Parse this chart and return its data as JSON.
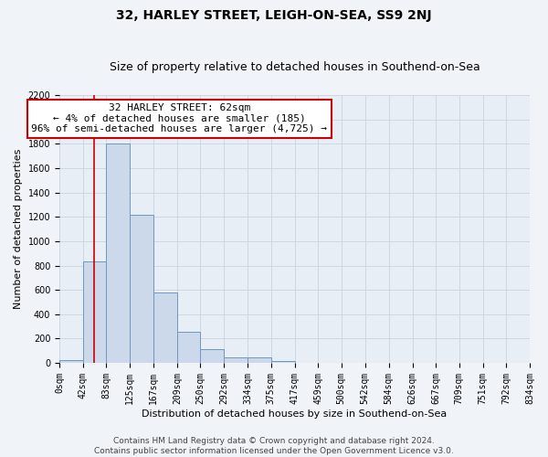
{
  "title": "32, HARLEY STREET, LEIGH-ON-SEA, SS9 2NJ",
  "subtitle": "Size of property relative to detached houses in Southend-on-Sea",
  "xlabel": "Distribution of detached houses by size in Southend-on-Sea",
  "ylabel": "Number of detached properties",
  "bin_edges": [
    0,
    42,
    83,
    125,
    167,
    209,
    250,
    292,
    334,
    375,
    417,
    459,
    500,
    542,
    584,
    626,
    667,
    709,
    751,
    792,
    834
  ],
  "bin_labels": [
    "0sqm",
    "42sqm",
    "83sqm",
    "125sqm",
    "167sqm",
    "209sqm",
    "250sqm",
    "292sqm",
    "334sqm",
    "375sqm",
    "417sqm",
    "459sqm",
    "500sqm",
    "542sqm",
    "584sqm",
    "626sqm",
    "667sqm",
    "709sqm",
    "751sqm",
    "792sqm",
    "834sqm"
  ],
  "bar_heights": [
    25,
    835,
    1800,
    1215,
    580,
    255,
    115,
    42,
    42,
    18,
    0,
    0,
    0,
    0,
    0,
    0,
    0,
    0,
    0,
    0
  ],
  "bar_color": "#ccd9ea",
  "bar_edge_color": "#7096be",
  "property_line_x": 62,
  "property_line_color": "#cc0000",
  "ylim": [
    0,
    2200
  ],
  "yticks": [
    0,
    200,
    400,
    600,
    800,
    1000,
    1200,
    1400,
    1600,
    1800,
    2000,
    2200
  ],
  "annotation_title": "32 HARLEY STREET: 62sqm",
  "annotation_line1": "← 4% of detached houses are smaller (185)",
  "annotation_line2": "96% of semi-detached houses are larger (4,725) →",
  "annotation_box_facecolor": "#ffffff",
  "annotation_box_edgecolor": "#cc0000",
  "footer_line1": "Contains HM Land Registry data © Crown copyright and database right 2024.",
  "footer_line2": "Contains public sector information licensed under the Open Government Licence v3.0.",
  "bg_color": "#f0f4f8",
  "plot_bg_color": "#e8eef5",
  "grid_color": "#c8d4e0",
  "title_fontsize": 10,
  "subtitle_fontsize": 9,
  "axis_label_fontsize": 8,
  "tick_fontsize": 7,
  "annotation_fontsize": 8,
  "footer_fontsize": 6.5
}
